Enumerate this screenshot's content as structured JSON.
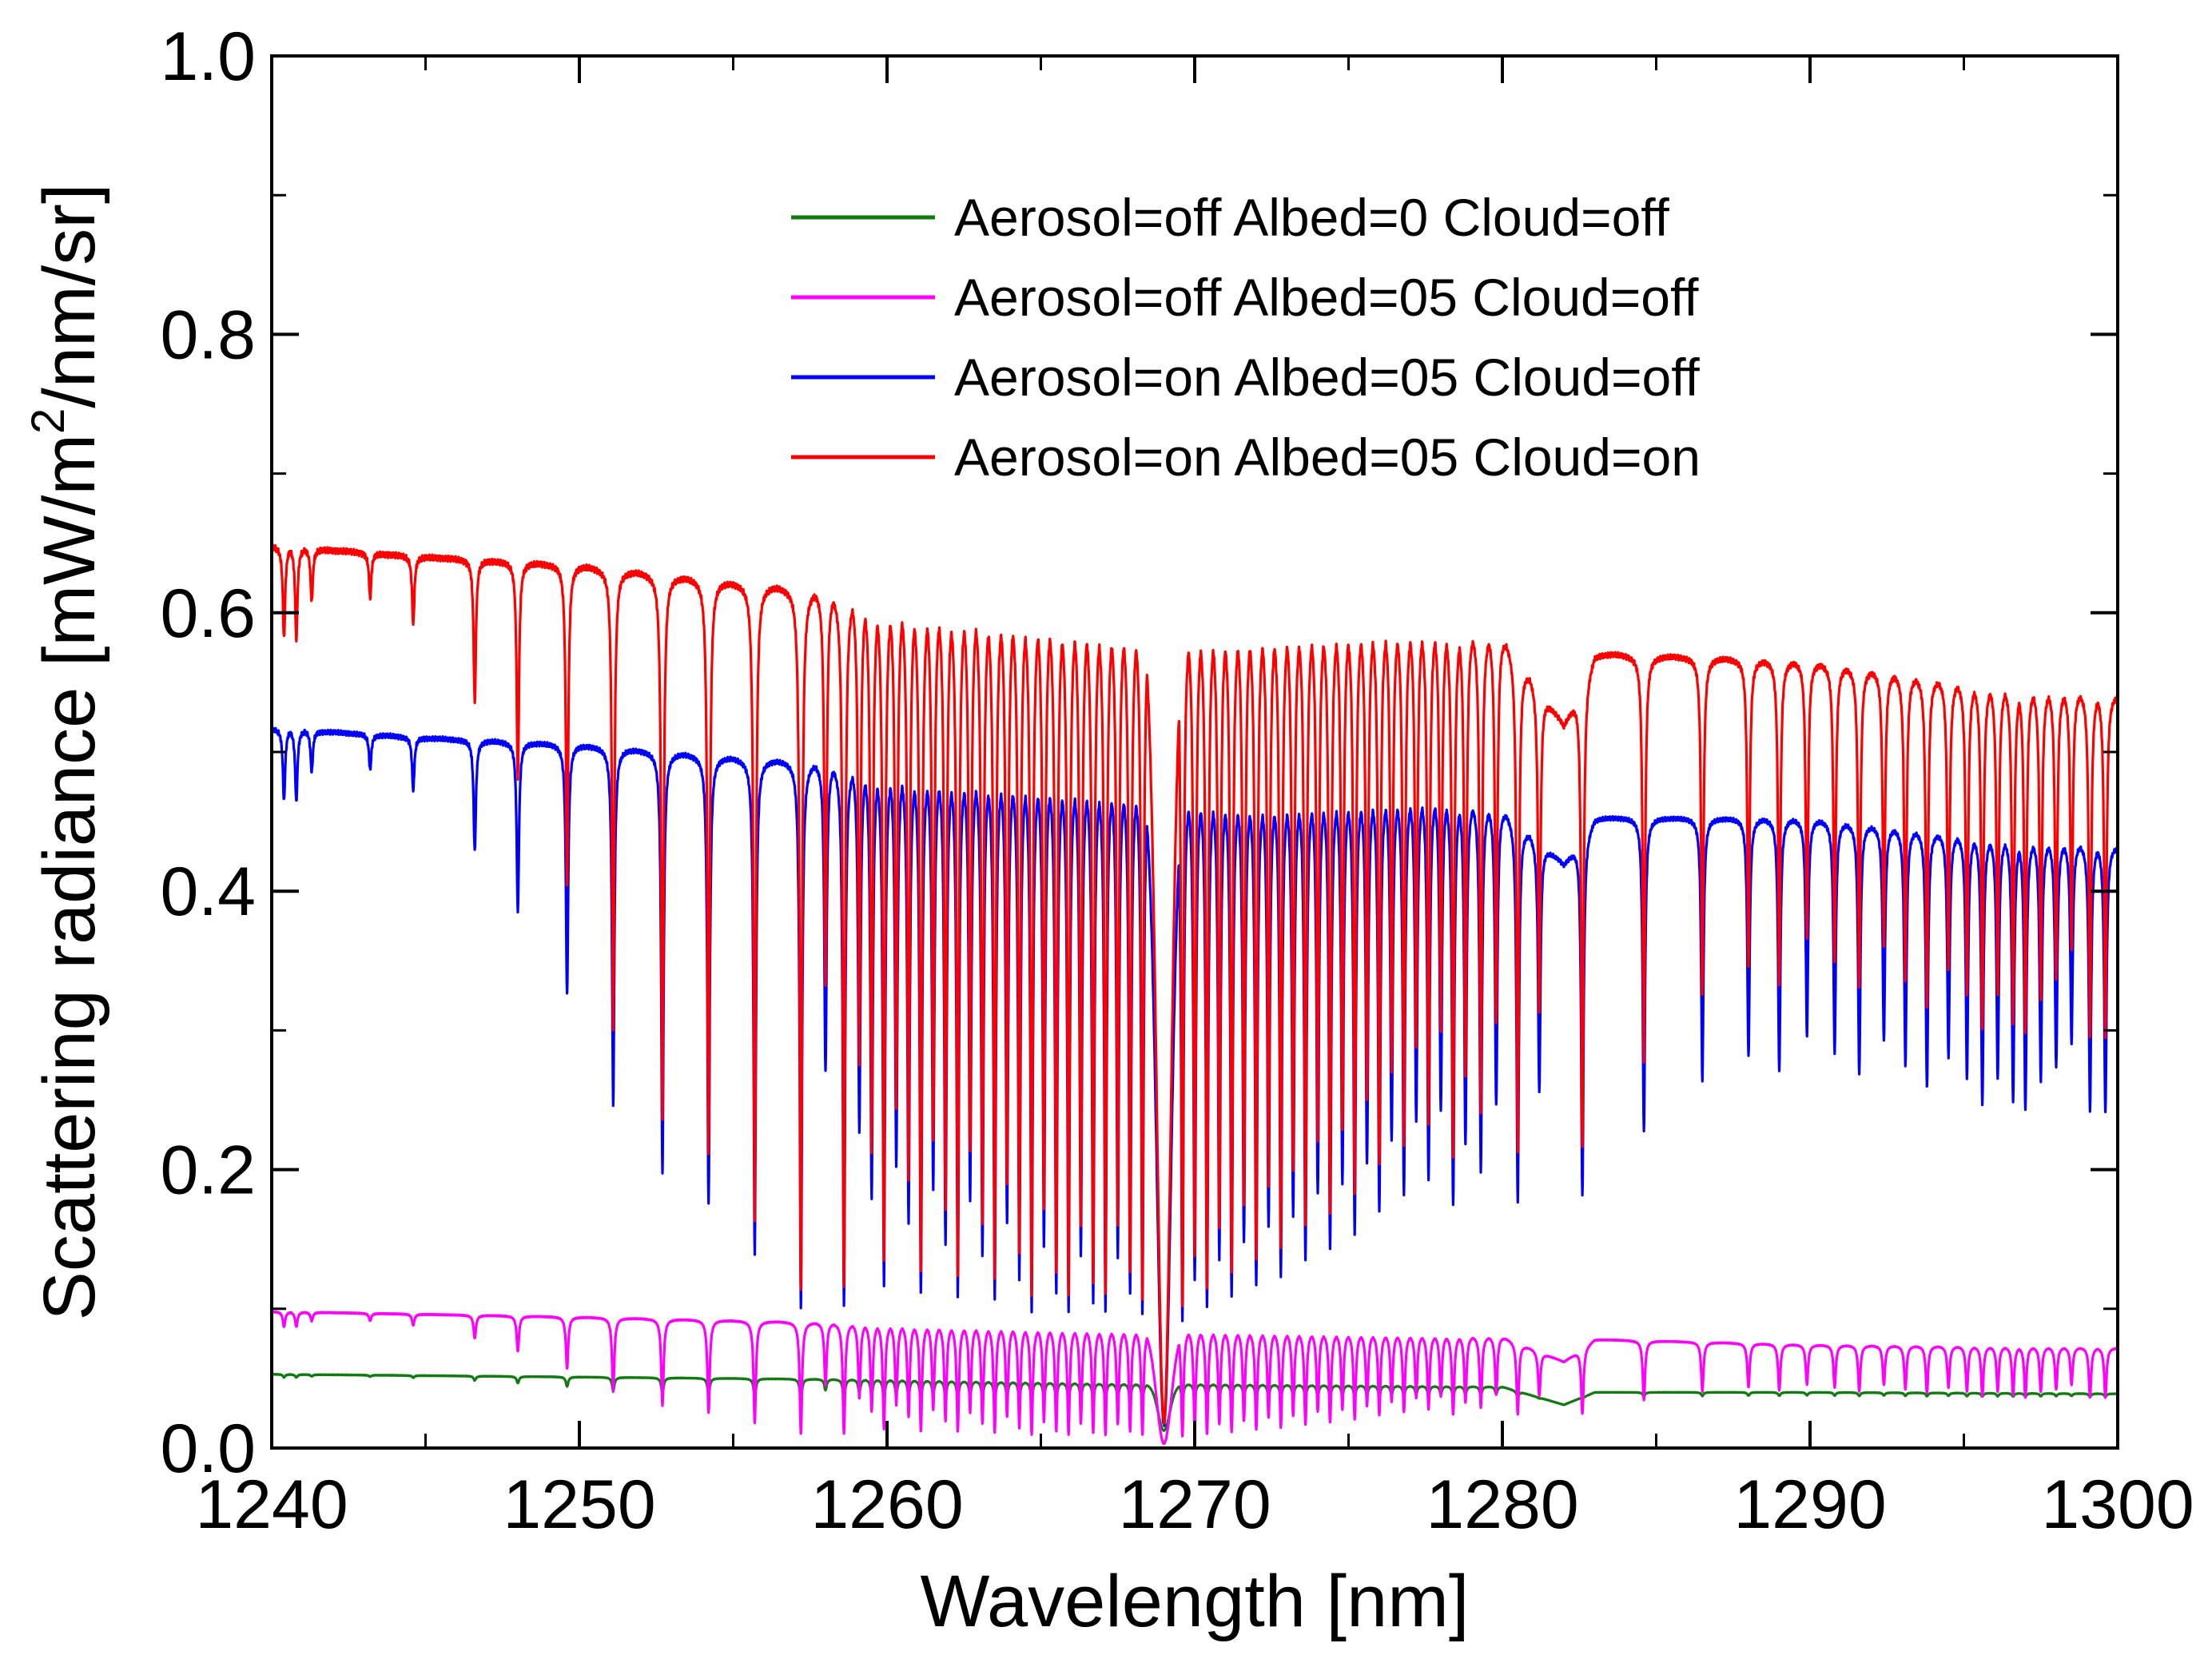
{
  "chart_data": {
    "type": "line",
    "title": "",
    "xlabel": "Wavelength [nm]",
    "ylabel_parts": {
      "base": "Scattering radiance [mW/m",
      "sup": "2",
      "tail": "/nm/sr]"
    },
    "xlim": [
      1240,
      1300
    ],
    "ylim": [
      0.0,
      1.0
    ],
    "x_ticks": [
      1240,
      1250,
      1260,
      1270,
      1280,
      1290,
      1300
    ],
    "x_tick_labels": [
      "1240",
      "1250",
      "1260",
      "1270",
      "1280",
      "1290",
      "1300"
    ],
    "y_ticks": [
      0.0,
      0.2,
      0.4,
      0.6,
      0.8,
      1.0
    ],
    "y_tick_labels": [
      "0.0",
      "0.2",
      "0.4",
      "0.6",
      "0.8",
      "1.0"
    ],
    "legend_position": "top-right",
    "grid": false,
    "series": [
      {
        "name": "Aerosol=off Albed=0 Cloud=off",
        "color": "#117a11",
        "continuum": [
          [
            1240,
            0.053
          ],
          [
            1250,
            0.051
          ],
          [
            1260,
            0.049
          ],
          [
            1268,
            0.046
          ],
          [
            1270,
            0.046
          ],
          [
            1280,
            0.044
          ],
          [
            1282,
            0.031
          ],
          [
            1283,
            0.04
          ],
          [
            1290,
            0.04
          ],
          [
            1300,
            0.039
          ]
        ],
        "dip_floor": 0.035,
        "band_floor": 0.012
      },
      {
        "name": "Aerosol=off Albed=05 Cloud=off",
        "color": "#ff00ff",
        "continuum": [
          [
            1240,
            0.098
          ],
          [
            1250,
            0.094
          ],
          [
            1260,
            0.089
          ],
          [
            1268,
            0.085
          ],
          [
            1270,
            0.085
          ],
          [
            1280,
            0.08
          ],
          [
            1282,
            0.062
          ],
          [
            1283,
            0.078
          ],
          [
            1290,
            0.074
          ],
          [
            1300,
            0.072
          ]
        ],
        "dip_floor": 0.008,
        "band_floor": 0.002
      },
      {
        "name": "Aerosol=on Albed=05 Cloud=off",
        "color": "#0000ff",
        "continuum": [
          [
            1240,
            0.517
          ],
          [
            1245,
            0.51
          ],
          [
            1250,
            0.505
          ],
          [
            1255,
            0.496
          ],
          [
            1260,
            0.49
          ],
          [
            1265,
            0.485
          ],
          [
            1268,
            0.48
          ],
          [
            1272,
            0.47
          ],
          [
            1278,
            0.472
          ],
          [
            1280,
            0.46
          ],
          [
            1282,
            0.42
          ],
          [
            1283,
            0.453
          ],
          [
            1290,
            0.452
          ],
          [
            1295,
            0.44
          ],
          [
            1300,
            0.433
          ]
        ],
        "dip_floor": 0.09,
        "band_floor": 0.01
      },
      {
        "name": "Aerosol=on Albed=05 Cloud=on",
        "color": "#ff0000",
        "continuum": [
          [
            1240,
            0.648
          ],
          [
            1245,
            0.64
          ],
          [
            1250,
            0.634
          ],
          [
            1255,
            0.622
          ],
          [
            1260,
            0.612
          ],
          [
            1265,
            0.604
          ],
          [
            1268,
            0.597
          ],
          [
            1270,
            0.595
          ],
          [
            1275,
            0.596
          ],
          [
            1278,
            0.594
          ],
          [
            1280,
            0.585
          ],
          [
            1282,
            0.52
          ],
          [
            1283,
            0.571
          ],
          [
            1290,
            0.565
          ],
          [
            1295,
            0.55
          ],
          [
            1300,
            0.542
          ]
        ],
        "dip_floor": 0.1,
        "band_floor": 0.01
      }
    ],
    "absorption_lines": [
      {
        "x": 1240.4,
        "d": 0.12
      },
      {
        "x": 1240.8,
        "d": 0.12
      },
      {
        "x": 1241.3,
        "d": 0.07
      },
      {
        "x": 1243.2,
        "d": 0.06
      },
      {
        "x": 1244.6,
        "d": 0.09
      },
      {
        "x": 1246.6,
        "d": 0.19
      },
      {
        "x": 1248.0,
        "d": 0.29
      },
      {
        "x": 1249.6,
        "d": 0.43
      },
      {
        "x": 1251.1,
        "d": 0.62
      },
      {
        "x": 1252.7,
        "d": 0.74
      },
      {
        "x": 1254.2,
        "d": 0.79
      },
      {
        "x": 1255.7,
        "d": 0.88
      },
      {
        "x": 1257.2,
        "d": 0.97
      },
      {
        "x": 1258.0,
        "d": 0.55
      },
      {
        "x": 1258.6,
        "d": 0.97
      },
      {
        "x": 1259.1,
        "d": 0.66
      },
      {
        "x": 1259.5,
        "d": 0.78
      },
      {
        "x": 1259.9,
        "d": 0.93
      },
      {
        "x": 1260.3,
        "d": 0.72
      },
      {
        "x": 1260.7,
        "d": 0.82
      },
      {
        "x": 1261.1,
        "d": 0.95
      },
      {
        "x": 1261.5,
        "d": 0.76
      },
      {
        "x": 1261.9,
        "d": 0.86
      },
      {
        "x": 1262.3,
        "d": 0.95
      },
      {
        "x": 1262.7,
        "d": 0.78
      },
      {
        "x": 1263.1,
        "d": 0.88
      },
      {
        "x": 1263.5,
        "d": 0.96
      },
      {
        "x": 1263.9,
        "d": 0.82
      },
      {
        "x": 1264.3,
        "d": 0.92
      },
      {
        "x": 1264.7,
        "d": 0.98
      },
      {
        "x": 1265.1,
        "d": 0.86
      },
      {
        "x": 1265.5,
        "d": 0.95
      },
      {
        "x": 1265.9,
        "d": 0.98
      },
      {
        "x": 1266.3,
        "d": 0.88
      },
      {
        "x": 1266.7,
        "d": 0.96
      },
      {
        "x": 1267.1,
        "d": 0.98
      },
      {
        "x": 1267.5,
        "d": 0.88
      },
      {
        "x": 1267.9,
        "d": 0.95
      },
      {
        "x": 1268.3,
        "d": 0.98
      },
      {
        "x": 1269.6,
        "d": 0.99
      },
      {
        "x": 1270.0,
        "d": 0.92
      },
      {
        "x": 1270.4,
        "d": 0.97
      },
      {
        "x": 1270.8,
        "d": 0.88
      },
      {
        "x": 1271.2,
        "d": 0.95
      },
      {
        "x": 1271.6,
        "d": 0.85
      },
      {
        "x": 1272.0,
        "d": 0.93
      },
      {
        "x": 1272.4,
        "d": 0.82
      },
      {
        "x": 1272.8,
        "d": 0.91
      },
      {
        "x": 1273.2,
        "d": 0.8
      },
      {
        "x": 1273.6,
        "d": 0.88
      },
      {
        "x": 1274.0,
        "d": 0.76
      },
      {
        "x": 1274.4,
        "d": 0.86
      },
      {
        "x": 1274.8,
        "d": 0.74
      },
      {
        "x": 1275.2,
        "d": 0.83
      },
      {
        "x": 1275.6,
        "d": 0.7
      },
      {
        "x": 1276.0,
        "d": 0.79
      },
      {
        "x": 1276.4,
        "d": 0.66
      },
      {
        "x": 1276.8,
        "d": 0.76
      },
      {
        "x": 1277.2,
        "d": 0.62
      },
      {
        "x": 1277.6,
        "d": 0.73
      },
      {
        "x": 1278.0,
        "d": 0.6
      },
      {
        "x": 1278.4,
        "d": 0.78
      },
      {
        "x": 1278.8,
        "d": 0.66
      },
      {
        "x": 1279.3,
        "d": 0.71
      },
      {
        "x": 1279.8,
        "d": 0.58
      },
      {
        "x": 1280.5,
        "d": 0.76
      },
      {
        "x": 1281.2,
        "d": 0.52
      },
      {
        "x": 1282.6,
        "d": 0.74
      },
      {
        "x": 1284.6,
        "d": 0.62
      },
      {
        "x": 1286.5,
        "d": 0.52
      },
      {
        "x": 1288.0,
        "d": 0.47
      },
      {
        "x": 1289.0,
        "d": 0.5
      },
      {
        "x": 1289.9,
        "d": 0.43
      },
      {
        "x": 1290.8,
        "d": 0.46
      },
      {
        "x": 1291.6,
        "d": 0.5
      },
      {
        "x": 1292.4,
        "d": 0.43
      },
      {
        "x": 1293.1,
        "d": 0.48
      },
      {
        "x": 1293.8,
        "d": 0.52
      },
      {
        "x": 1294.5,
        "d": 0.46
      },
      {
        "x": 1295.1,
        "d": 0.5
      },
      {
        "x": 1295.6,
        "d": 0.55
      },
      {
        "x": 1296.1,
        "d": 0.5
      },
      {
        "x": 1296.6,
        "d": 0.54
      },
      {
        "x": 1297.0,
        "d": 0.56
      },
      {
        "x": 1297.5,
        "d": 0.5
      },
      {
        "x": 1298.0,
        "d": 0.47
      },
      {
        "x": 1298.5,
        "d": 0.42
      },
      {
        "x": 1299.1,
        "d": 0.56
      },
      {
        "x": 1299.6,
        "d": 0.56
      }
    ],
    "band_center": 1269.0,
    "band_halfwidth": 0.55
  }
}
